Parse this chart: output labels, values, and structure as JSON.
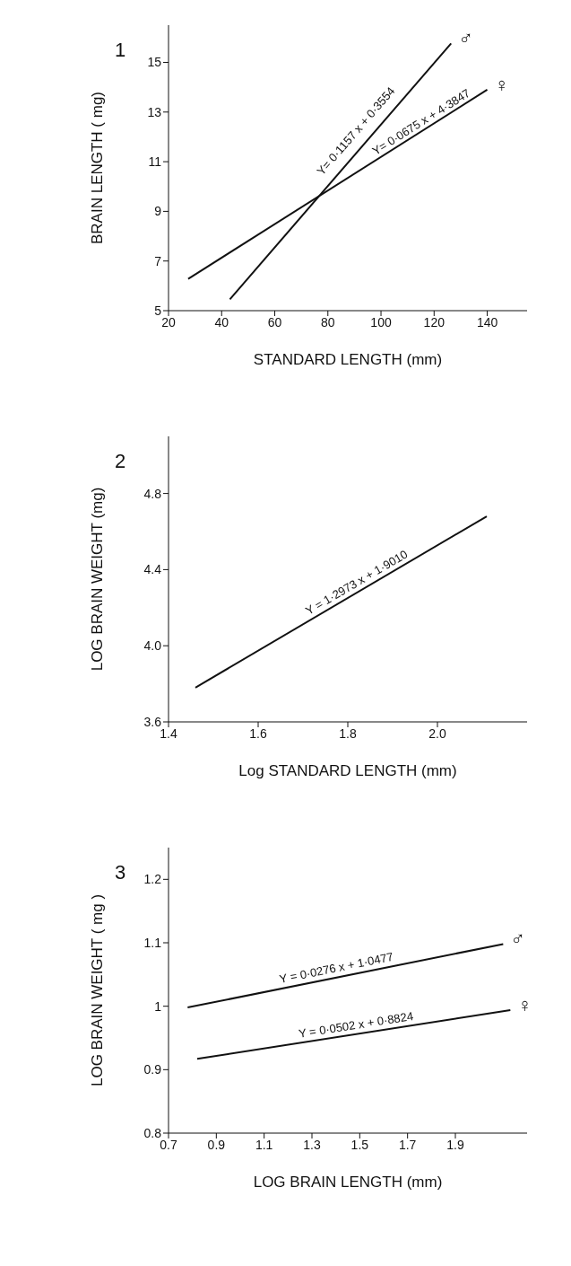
{
  "chart_data": [
    {
      "type": "line",
      "title": "1",
      "xlabel": "STANDARD LENGTH (mm)",
      "ylabel": "BRAIN LENGTH ( mg)",
      "line_style": "solid",
      "xlim": [
        20,
        155
      ],
      "xticks": [
        20,
        40,
        60,
        80,
        100,
        120,
        140
      ],
      "ylim": [
        5,
        16.5
      ],
      "yticks": [
        5,
        7,
        9,
        11,
        13,
        15
      ],
      "series": [
        {
          "name": "♂",
          "color": "#111111",
          "x": [
            43.1,
            126.4
          ],
          "values": [
            5.46,
            15.76
          ]
        },
        {
          "name": "♀",
          "color": "#111111",
          "x": [
            27.4,
            140
          ],
          "values": [
            6.28,
            13.9
          ]
        }
      ],
      "annotations": [
        "Y= 0·1157 x + 0·3554",
        {
          "text": "Y= 0·0675 x + 4·3847",
          "x": 117,
          "y": 12.28
        }
      ]
    },
    {
      "type": "line",
      "title": "2",
      "xlabel": "Log  STANDARD  LENGTH (mm)",
      "ylabel": "LOG  BRAIN  WEIGHT (mg)",
      "line_style": "solid",
      "xlim": [
        1.4,
        2.2
      ],
      "xticks": [
        {
          "value": 1.4,
          "label": "1.4"
        },
        {
          "value": 1.6,
          "label": "1.6"
        },
        {
          "value": 1.8,
          "label": "1.8"
        },
        {
          "value": 2.0,
          "label": "2.0"
        }
      ],
      "ylim": [
        3.6,
        5.1
      ],
      "yticks": [
        {
          "value": 3.6,
          "label": "3.6"
        },
        {
          "value": 4.0,
          "label": "4.0"
        },
        {
          "value": 4.4,
          "label": "4.4"
        },
        {
          "value": 4.8,
          "label": "4.8"
        }
      ],
      "series": [
        {
          "color": "#111111",
          "x": [
            1.46,
            2.11
          ],
          "values": [
            3.78,
            4.68
          ]
        }
      ],
      "annotations": [
        {
          "text": "Y = 1·2973 x + 1·9010",
          "x": 1.83,
          "y": 4.29
        }
      ]
    },
    {
      "type": "line",
      "title": "3",
      "xlabel": "LOG  BRAIN  LENGTH (mm)",
      "ylabel": "LOG  BRAIN  WEIGHT ( mg )",
      "line_style": "solid",
      "xlim": [
        0.7,
        2.2
      ],
      "xticks": [
        0.7,
        0.9,
        1.1,
        1.3,
        1.5,
        1.7,
        1.9
      ],
      "ylim": [
        0.8,
        1.25
      ],
      "yticks": [
        0.8,
        0.9,
        1,
        1.1,
        1.2
      ],
      "series": [
        {
          "name": "♂",
          "color": "#111111",
          "x": [
            0.78,
            2.1
          ],
          "values": [
            0.998,
            1.098
          ]
        },
        {
          "name": "♀",
          "color": "#111111",
          "x": [
            0.82,
            2.13
          ],
          "values": [
            0.917,
            0.994
          ]
        }
      ],
      "annotations": [
        {
          "text": "Y = 0·0276  x + 1·0477",
          "x": 1.41,
          "y": 1.046
        },
        {
          "text": "Y = 0·0502  x + 0·8824",
          "x": 1.49,
          "y": 0.956
        }
      ]
    }
  ]
}
